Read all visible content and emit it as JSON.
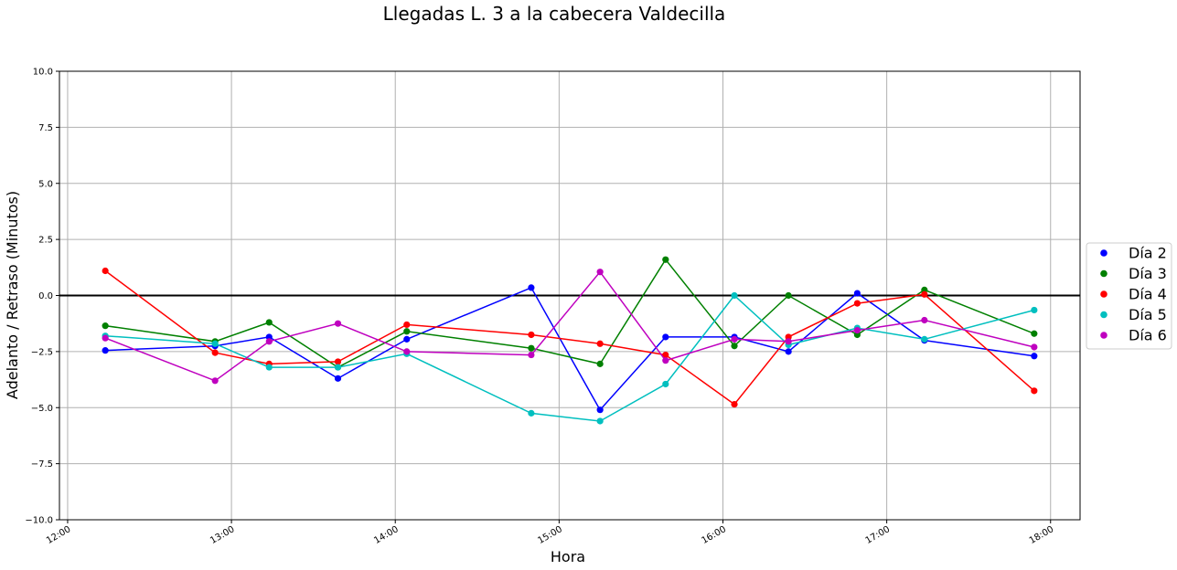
{
  "chart_data": {
    "type": "line",
    "title": "Llegadas L. 3 a la cabecera Valdecilla",
    "xlabel": "Hora",
    "ylabel": "Adelanto / Retraso (Minutos)",
    "xlim": [
      11.95,
      18.18
    ],
    "ylim": [
      -10,
      10
    ],
    "x_ticks": [
      {
        "value": 12,
        "label": "12:00"
      },
      {
        "value": 13,
        "label": "13:00"
      },
      {
        "value": 14,
        "label": "14:00"
      },
      {
        "value": 15,
        "label": "15:00"
      },
      {
        "value": 16,
        "label": "16:00"
      },
      {
        "value": 17,
        "label": "17:00"
      },
      {
        "value": 18,
        "label": "18:00"
      }
    ],
    "y_ticks": [
      {
        "value": 10,
        "label": "10.0"
      },
      {
        "value": 7.5,
        "label": "7.5"
      },
      {
        "value": 5,
        "label": "5.0"
      },
      {
        "value": 2.5,
        "label": "2.5"
      },
      {
        "value": 0,
        "label": "0.0"
      },
      {
        "value": -2.5,
        "label": "−2.5"
      },
      {
        "value": -5,
        "label": "−5.0"
      },
      {
        "value": -7.5,
        "label": "−7.5"
      },
      {
        "value": -10,
        "label": "−10.0"
      }
    ],
    "grid": true,
    "reference_line": {
      "y": 0,
      "color": "#000000"
    },
    "legend_position": "right",
    "series": [
      {
        "name": "Día 2",
        "color": "#0000ff",
        "x": [
          12.23,
          12.9,
          13.23,
          13.65,
          14.07,
          14.83,
          15.25,
          15.65,
          16.07,
          16.4,
          16.82,
          17.23,
          17.9
        ],
        "y": [
          -2.45,
          -2.25,
          -1.85,
          -3.7,
          -1.95,
          0.35,
          -5.1,
          -1.85,
          -1.85,
          -2.5,
          0.1,
          -2.0,
          -2.7
        ]
      },
      {
        "name": "Día 3",
        "color": "#008000",
        "x": [
          12.23,
          12.9,
          13.23,
          13.65,
          14.07,
          14.83,
          15.25,
          15.65,
          16.07,
          16.4,
          16.82,
          17.23,
          17.9
        ],
        "y": [
          -1.35,
          -2.05,
          -1.2,
          -3.2,
          -1.6,
          -2.35,
          -3.05,
          1.6,
          -2.25,
          0.0,
          -1.75,
          0.25,
          -1.7
        ]
      },
      {
        "name": "Día 4",
        "color": "#ff0000",
        "x": [
          12.23,
          12.9,
          13.23,
          13.65,
          14.07,
          14.83,
          15.25,
          15.65,
          16.07,
          16.4,
          16.82,
          17.23,
          17.9
        ],
        "y": [
          1.1,
          -2.55,
          -3.05,
          -2.95,
          -1.3,
          -1.75,
          -2.15,
          -2.65,
          -4.85,
          -1.85,
          -0.35,
          0.05,
          -4.25
        ]
      },
      {
        "name": "Día 5",
        "color": "#00bfbf",
        "x": [
          12.23,
          12.9,
          13.23,
          13.65,
          14.07,
          14.83,
          15.25,
          15.65,
          16.07,
          16.4,
          16.82,
          17.23,
          17.9
        ],
        "y": [
          -1.8,
          -2.15,
          -3.2,
          -3.2,
          -2.6,
          -5.25,
          -5.6,
          -3.95,
          0.0,
          -2.2,
          -1.45,
          -1.95,
          -0.65
        ]
      },
      {
        "name": "Día 6",
        "color": "#bf00bf",
        "x": [
          12.23,
          12.9,
          13.23,
          13.65,
          14.07,
          14.83,
          15.25,
          15.65,
          16.07,
          16.4,
          16.82,
          17.23,
          17.9
        ],
        "y": [
          -1.9,
          -3.8,
          -2.05,
          -1.25,
          -2.5,
          -2.65,
          1.05,
          -2.9,
          -1.95,
          -2.05,
          -1.55,
          -1.1,
          -2.3
        ]
      }
    ]
  }
}
